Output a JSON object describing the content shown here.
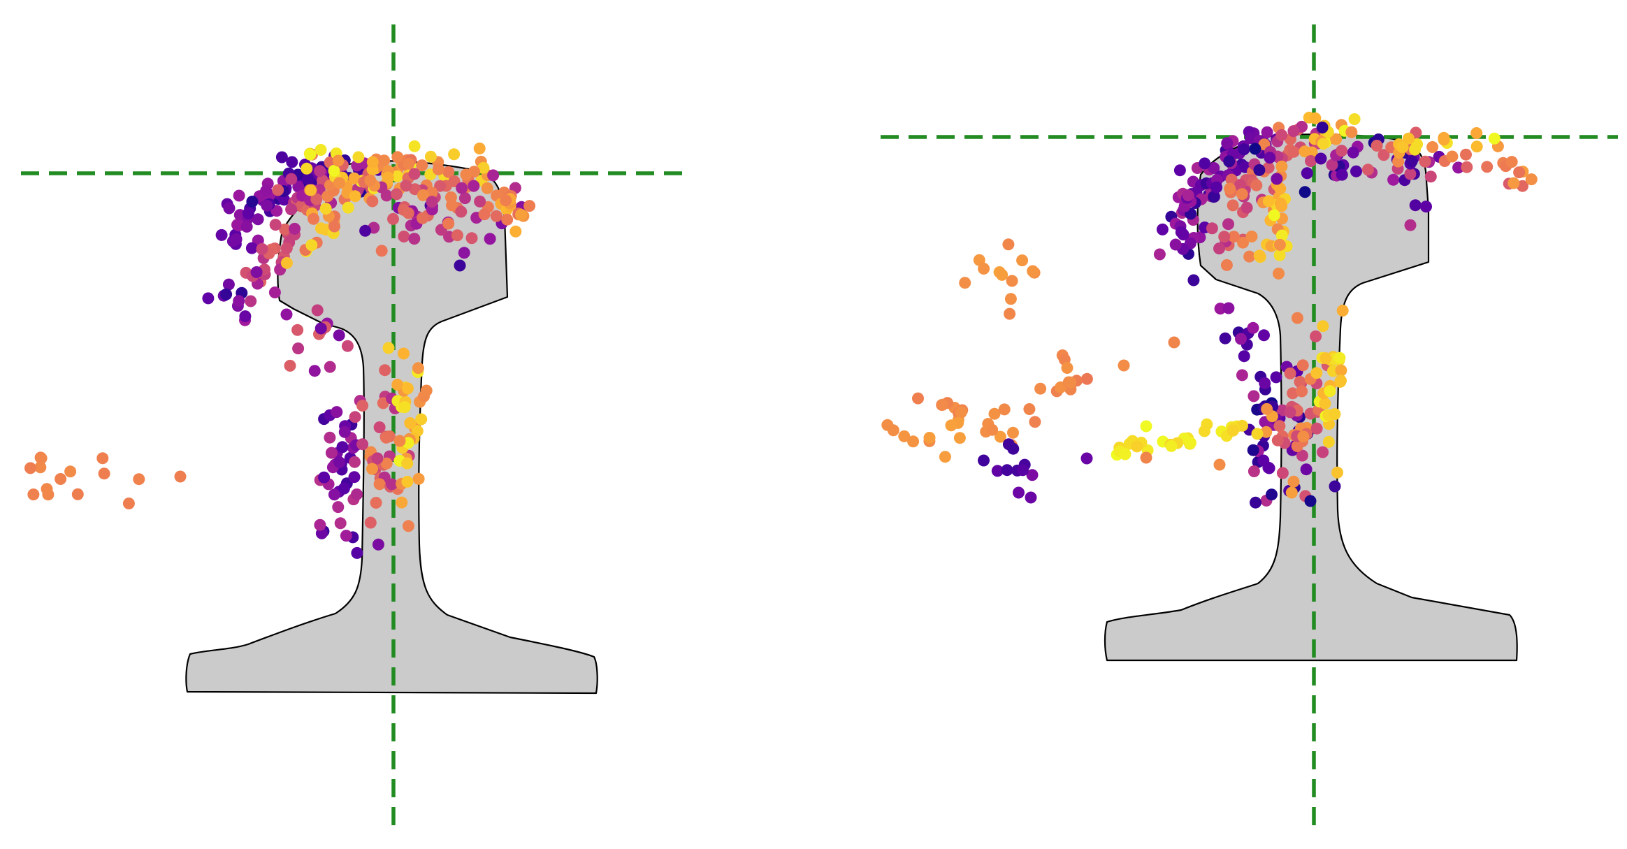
{
  "colors": {
    "rail_fill": "#cbcbcb",
    "rail_edge": "#000000",
    "reference_line": "#228b22",
    "colormap": "plasma",
    "colormap_stops": [
      "#0d0887",
      "#5c01a6",
      "#9c179e",
      "#cc4778",
      "#ed7953",
      "#fdb42f",
      "#f0f921"
    ]
  },
  "panels": [
    {
      "id": "left",
      "shape": "rail-cross-section",
      "reference_lines": [
        "horizontal-dashed",
        "vertical-dashed"
      ],
      "marker": "filled-circle"
    },
    {
      "id": "right",
      "shape": "rail-cross-section",
      "reference_lines": [
        "horizontal-dashed",
        "vertical-dashed"
      ],
      "marker": "filled-circle"
    }
  ]
}
